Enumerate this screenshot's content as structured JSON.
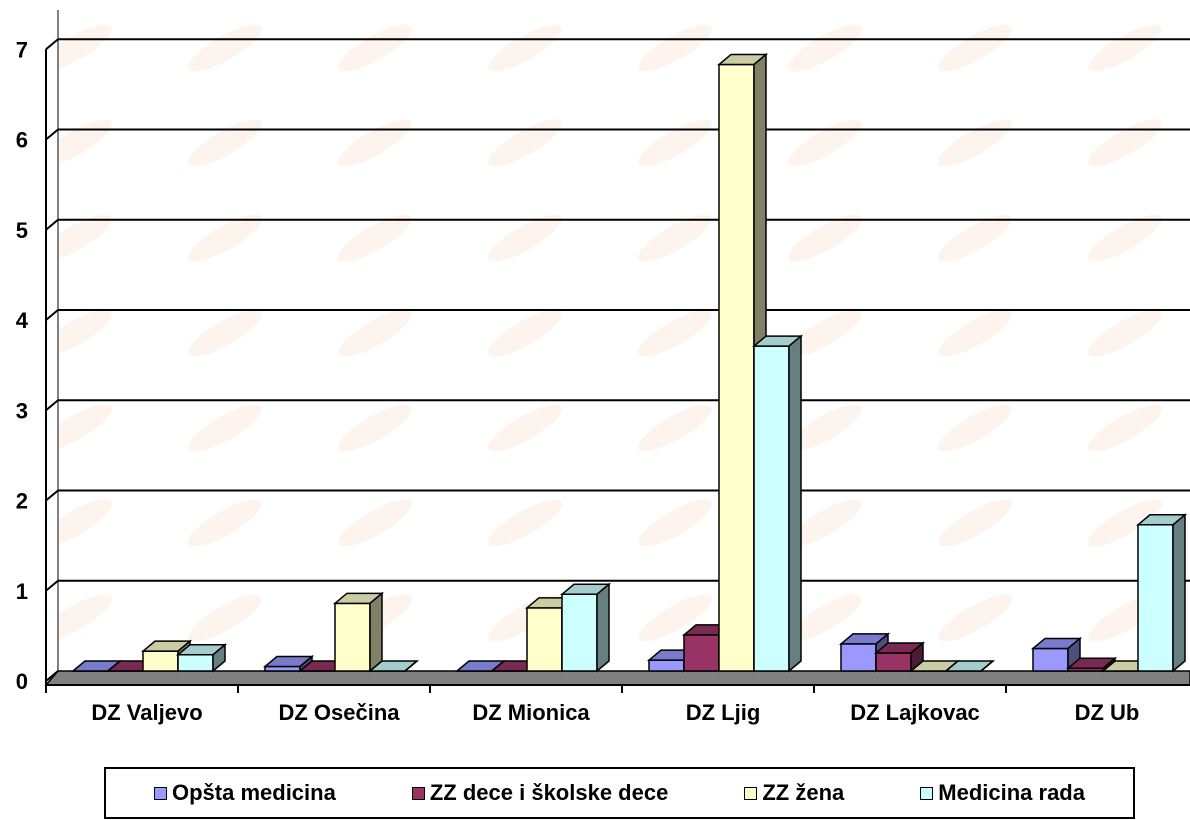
{
  "chart_data": {
    "type": "bar",
    "style": "3d-clustered-column",
    "categories": [
      "DZ Valjevo",
      "DZ Osečina",
      "DZ Mionica",
      "DZ Ljig",
      "DZ Lajkovac",
      "DZ Ub"
    ],
    "series": [
      {
        "name": "Opšta medicina",
        "color": "#9999ff",
        "values": [
          0,
          0.05,
          0,
          0.12,
          0.3,
          0.25
        ]
      },
      {
        "name": "ZZ dece i školske dece",
        "color": "#993366",
        "values": [
          0,
          0,
          0,
          0.4,
          0.2,
          0.03
        ]
      },
      {
        "name": "ZZ žena",
        "color": "#ffffcc",
        "values": [
          0.22,
          0.75,
          0.7,
          6.72,
          0,
          0
        ]
      },
      {
        "name": "Medicina rada",
        "color": "#ccffff",
        "values": [
          0.18,
          0,
          0.85,
          3.6,
          0,
          1.62
        ]
      }
    ],
    "y_ticks": [
      "0",
      "1",
      "2",
      "3",
      "4",
      "5",
      "6",
      "7"
    ],
    "ylim": [
      0,
      7
    ],
    "grid": true,
    "legend_position": "bottom"
  }
}
